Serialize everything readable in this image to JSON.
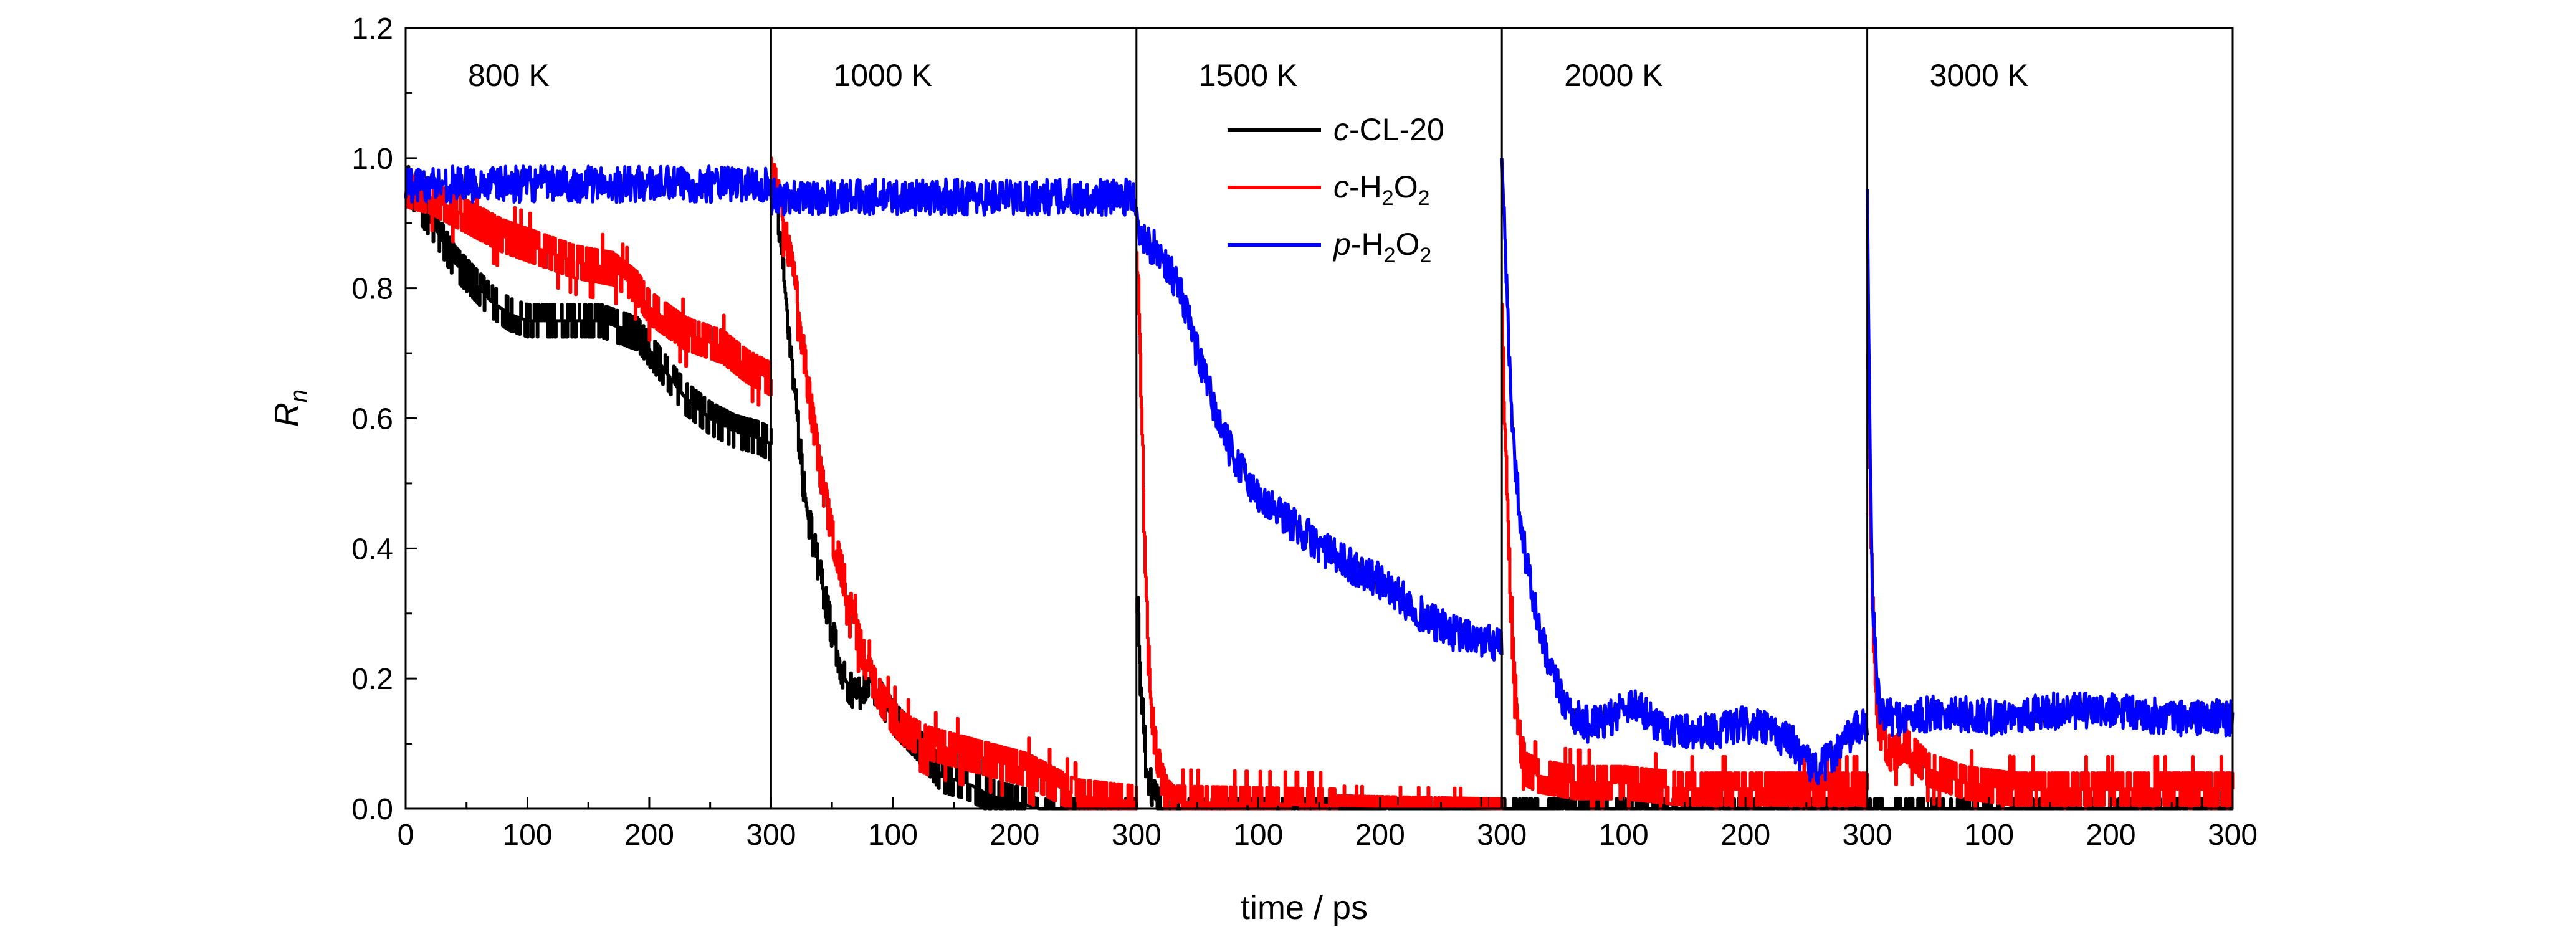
{
  "chart_data": {
    "type": "line",
    "xlabel": "time / ps",
    "ylabel": "R",
    "ylabel_sub": "n",
    "ylim": [
      0,
      1.2
    ],
    "yticks": [
      "0.0",
      "0.2",
      "0.4",
      "0.6",
      "0.8",
      "1.0",
      "1.2"
    ],
    "xlim_per_panel": [
      0,
      300
    ],
    "xtick_values": [
      0,
      100,
      200,
      300
    ],
    "xtick_labels": [
      "0",
      "100",
      "200",
      "300",
      "100",
      "200",
      "300",
      "100",
      "200",
      "300",
      "100",
      "200",
      "300",
      "100",
      "200",
      "300"
    ],
    "panels": [
      "800 K",
      "1000 K",
      "1500 K",
      "2000 K",
      "3000 K"
    ],
    "legend_position": "top-center",
    "legend": [
      {
        "prefix": "c",
        "main": "-CL-20",
        "sub1": "",
        "mid": "",
        "sub2": "",
        "color": "#000000"
      },
      {
        "prefix": "c",
        "main": "-H",
        "sub1": "2",
        "mid": "O",
        "sub2": "2",
        "color": "#ff0000"
      },
      {
        "prefix": "p",
        "main": "-H",
        "sub1": "2",
        "mid": "O",
        "sub2": "2",
        "color": "#0000ff"
      }
    ],
    "series": [
      {
        "name": "c-CL-20",
        "color": "#000000",
        "step": true,
        "noise": 0.025,
        "panels": [
          {
            "t": [
              0,
              10,
              25,
              40,
              55,
              70,
              85,
              100,
              130,
              160,
              190,
              210,
              230,
              250,
              270,
              290,
              300
            ],
            "y": [
              0.97,
              0.93,
              0.89,
              0.84,
              0.81,
              0.78,
              0.76,
              0.75,
              0.75,
              0.75,
              0.73,
              0.68,
              0.63,
              0.6,
              0.58,
              0.57,
              0.56
            ]
          },
          {
            "t": [
              0,
              5,
              10,
              15,
              20,
              25,
              30,
              40,
              50,
              60,
              70,
              80,
              100,
              120,
              140,
              160,
              180,
              200,
              220,
              240,
              260,
              300
            ],
            "y": [
              0.97,
              0.93,
              0.82,
              0.73,
              0.63,
              0.52,
              0.45,
              0.36,
              0.27,
              0.2,
              0.17,
              0.2,
              0.14,
              0.1,
              0.05,
              0.04,
              0.02,
              0.01,
              0.0,
              0.0,
              0.0,
              0.0
            ]
          },
          {
            "t": [
              0,
              3,
              8,
              14,
              20,
              30,
              300
            ],
            "y": [
              0.35,
              0.2,
              0.06,
              0.02,
              0.0,
              0.0,
              0.0
            ]
          },
          {
            "t": [
              0,
              300
            ],
            "y": [
              0.0,
              0.0
            ]
          },
          {
            "t": [
              0,
              300
            ],
            "y": [
              0.0,
              0.0
            ]
          }
        ]
      },
      {
        "name": "c-H2O2",
        "color": "#ff0000",
        "step": true,
        "noise": 0.04,
        "panels": [
          {
            "t": [
              0,
              20,
              50,
              80,
              110,
              140,
              170,
              190,
              200,
              215,
              230,
              245,
              260,
              280,
              300
            ],
            "y": [
              0.95,
              0.94,
              0.91,
              0.88,
              0.86,
              0.84,
              0.83,
              0.8,
              0.77,
              0.75,
              0.73,
              0.72,
              0.71,
              0.68,
              0.66
            ]
          },
          {
            "t": [
              0,
              5,
              10,
              20,
              30,
              40,
              50,
              60,
              70,
              80,
              90,
              100,
              110,
              130,
              150,
              170,
              190,
              210,
              230,
              250,
              300
            ],
            "y": [
              0.98,
              0.95,
              0.9,
              0.8,
              0.65,
              0.52,
              0.42,
              0.35,
              0.27,
              0.21,
              0.17,
              0.14,
              0.12,
              0.1,
              0.09,
              0.08,
              0.07,
              0.06,
              0.04,
              0.02,
              0.01
            ]
          },
          {
            "t": [
              0,
              3,
              6,
              10,
              15,
              20,
              25,
              30,
              300
            ],
            "y": [
              0.88,
              0.7,
              0.45,
              0.2,
              0.1,
              0.05,
              0.02,
              0.01,
              0.0
            ]
          },
          {
            "t": [
              0,
              3,
              6,
              10,
              15,
              20,
              30,
              60,
              100,
              150,
              200,
              250,
              300
            ],
            "y": [
              0.75,
              0.55,
              0.35,
              0.2,
              0.1,
              0.06,
              0.05,
              0.04,
              0.04,
              0.03,
              0.03,
              0.03,
              0.03
            ]
          },
          {
            "t": [
              0,
              3,
              6,
              10,
              20,
              30,
              50,
              80,
              120,
              160,
              200,
              250,
              300
            ],
            "y": [
              0.7,
              0.4,
              0.2,
              0.12,
              0.08,
              0.1,
              0.06,
              0.04,
              0.03,
              0.03,
              0.03,
              0.03,
              0.03
            ]
          }
        ]
      },
      {
        "name": "p-H2O2",
        "color": "#0000ff",
        "step": false,
        "noise": 0.028,
        "panels": [
          {
            "t": [
              0,
              100,
              200,
              300
            ],
            "y": [
              0.96,
              0.96,
              0.96,
              0.96
            ]
          },
          {
            "t": [
              0,
              100,
              200,
              300
            ],
            "y": [
              0.94,
              0.94,
              0.94,
              0.94
            ]
          },
          {
            "t": [
              0,
              10,
              20,
              30,
              40,
              50,
              60,
              70,
              80,
              100,
              120,
              140,
              160,
              180,
              200,
              220,
              240,
              260,
              280,
              300
            ],
            "y": [
              0.9,
              0.87,
              0.85,
              0.82,
              0.77,
              0.7,
              0.64,
              0.58,
              0.54,
              0.48,
              0.45,
              0.42,
              0.39,
              0.37,
              0.35,
              0.32,
              0.29,
              0.27,
              0.26,
              0.25
            ]
          },
          {
            "t": [
              0,
              3,
              6,
              10,
              15,
              20,
              30,
              40,
              50,
              60,
              70,
              80,
              90,
              100,
              110,
              120,
              140,
              160,
              180,
              200,
              220,
              240,
              250,
              260,
              270,
              280,
              290,
              300
            ],
            "y": [
              1.0,
              0.85,
              0.7,
              0.55,
              0.45,
              0.38,
              0.28,
              0.21,
              0.17,
              0.14,
              0.13,
              0.13,
              0.14,
              0.16,
              0.16,
              0.14,
              0.12,
              0.12,
              0.12,
              0.13,
              0.12,
              0.1,
              0.07,
              0.06,
              0.08,
              0.1,
              0.12,
              0.13
            ]
          },
          {
            "t": [
              0,
              2,
              4,
              7,
              10,
              20,
              40,
              60,
              100,
              150,
              200,
              250,
              300
            ],
            "y": [
              0.95,
              0.6,
              0.35,
              0.22,
              0.15,
              0.14,
              0.14,
              0.15,
              0.14,
              0.15,
              0.15,
              0.14,
              0.14
            ]
          }
        ]
      }
    ]
  }
}
